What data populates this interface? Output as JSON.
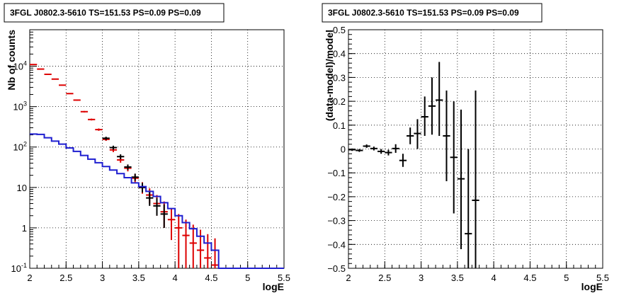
{
  "chart_data": [
    {
      "type": "scatter",
      "title": "3FGL J0802.3-5610 TS=151.53 PS=0.09 PS=0.09",
      "xlabel": "logE",
      "ylabel": "Nb of counts",
      "xlim": [
        2,
        5.5
      ],
      "ylim": [
        0.1,
        80000
      ],
      "yscale": "log",
      "grid": true,
      "x_ticks": [
        "2",
        "2.5",
        "3",
        "3.5",
        "4",
        "4.5",
        "5",
        "5.5"
      ],
      "y_ticks": [
        {
          "value": 0.1,
          "label": "10^-1"
        },
        {
          "value": 1,
          "label": "1"
        },
        {
          "value": 10,
          "label": "10"
        },
        {
          "value": 100,
          "label": "10^2"
        },
        {
          "value": 1000,
          "label": "10^3"
        },
        {
          "value": 10000,
          "label": "10^4"
        }
      ],
      "series": [
        {
          "color": "#dd0000",
          "style": "errorbar",
          "points": [
            {
              "x": 2.05,
              "y": 11000,
              "lo": 10800,
              "hi": 11200
            },
            {
              "x": 2.15,
              "y": 8500,
              "lo": 8350,
              "hi": 8650
            },
            {
              "x": 2.25,
              "y": 6300,
              "lo": 6180,
              "hi": 6420
            },
            {
              "x": 2.35,
              "y": 4800,
              "lo": 4700,
              "hi": 4900
            },
            {
              "x": 2.45,
              "y": 3400,
              "lo": 3320,
              "hi": 3480
            },
            {
              "x": 2.55,
              "y": 2100,
              "lo": 2050,
              "hi": 2150
            },
            {
              "x": 2.65,
              "y": 1450,
              "lo": 1400,
              "hi": 1500
            },
            {
              "x": 2.75,
              "y": 750,
              "lo": 720,
              "hi": 780
            },
            {
              "x": 2.85,
              "y": 480,
              "lo": 455,
              "hi": 505
            },
            {
              "x": 2.95,
              "y": 270,
              "lo": 252,
              "hi": 288
            },
            {
              "x": 3.05,
              "y": 155,
              "lo": 142,
              "hi": 168
            },
            {
              "x": 3.15,
              "y": 85,
              "lo": 75,
              "hi": 95
            },
            {
              "x": 3.25,
              "y": 48,
              "lo": 41,
              "hi": 55
            },
            {
              "x": 3.35,
              "y": 30,
              "lo": 25,
              "hi": 35
            },
            {
              "x": 3.45,
              "y": 17,
              "lo": 13.5,
              "hi": 21
            },
            {
              "x": 3.55,
              "y": 10,
              "lo": 7,
              "hi": 13.5
            },
            {
              "x": 3.65,
              "y": 6.5,
              "lo": 4,
              "hi": 9.5
            },
            {
              "x": 3.75,
              "y": 4,
              "lo": 2,
              "hi": 6.5
            },
            {
              "x": 3.85,
              "y": 2.5,
              "lo": 1,
              "hi": 4.5
            },
            {
              "x": 3.95,
              "y": 1.6,
              "lo": 0.5,
              "hi": 3
            },
            {
              "x": 4.05,
              "y": 1.0,
              "lo": 0.1,
              "hi": 2.2
            },
            {
              "x": 4.15,
              "y": 0.65,
              "lo": 0.1,
              "hi": 1.6
            },
            {
              "x": 4.25,
              "y": 0.42,
              "lo": 0.1,
              "hi": 1.2
            },
            {
              "x": 4.35,
              "y": 0.28,
              "lo": 0.1,
              "hi": 0.9
            },
            {
              "x": 4.45,
              "y": 0.18,
              "lo": 0.1,
              "hi": 0.7
            },
            {
              "x": 4.55,
              "y": 0.12,
              "lo": 0.1,
              "hi": 0.55
            }
          ]
        },
        {
          "color": "#000000",
          "style": "errorbar",
          "points": [
            {
              "x": 3.05,
              "y": 165,
              "lo": 150,
              "hi": 180
            },
            {
              "x": 3.15,
              "y": 97,
              "lo": 86,
              "hi": 108
            },
            {
              "x": 3.25,
              "y": 58,
              "lo": 50,
              "hi": 66
            },
            {
              "x": 3.35,
              "y": 32,
              "lo": 27,
              "hi": 37
            },
            {
              "x": 3.45,
              "y": 18,
              "lo": 14.5,
              "hi": 22
            },
            {
              "x": 3.55,
              "y": 10,
              "lo": 7.5,
              "hi": 13
            },
            {
              "x": 3.65,
              "y": 5.5,
              "lo": 3.5,
              "hi": 8
            },
            {
              "x": 3.75,
              "y": 3.5,
              "lo": 2,
              "hi": 5.5
            },
            {
              "x": 3.85,
              "y": 2.2,
              "lo": 1,
              "hi": 3.8
            }
          ]
        },
        {
          "color": "#1f1fd0",
          "style": "histogram",
          "bin_width": 0.1,
          "x": [
            2.0,
            2.1,
            2.2,
            2.3,
            2.4,
            2.5,
            2.6,
            2.7,
            2.8,
            2.9,
            3.0,
            3.1,
            3.2,
            3.3,
            3.4,
            3.5,
            3.6,
            3.7,
            3.8,
            3.9,
            4.0,
            4.1,
            4.2,
            4.3,
            4.4,
            4.5,
            4.6,
            4.7,
            4.8,
            4.9,
            5.0,
            5.1,
            5.2,
            5.3,
            5.4
          ],
          "y": [
            210,
            205,
            170,
            140,
            118,
            95,
            78,
            62,
            50,
            41,
            33,
            27,
            22,
            17.5,
            13,
            10.5,
            8,
            6,
            4.2,
            3,
            2,
            1.35,
            0.95,
            0.62,
            0.42,
            0.28,
            0.1,
            0.1,
            0.1,
            0.1,
            0.1,
            0.1,
            0.1,
            0.1,
            0.1
          ]
        }
      ]
    },
    {
      "type": "scatter",
      "title": "3FGL J0802.3-5610 TS=151.53 PS=0.09 PS=0.09",
      "xlabel": "logE",
      "ylabel": "(data-model)/model",
      "xlim": [
        2,
        5.5
      ],
      "ylim": [
        -0.5,
        0.5
      ],
      "grid": true,
      "x_ticks": [
        "2",
        "2.5",
        "3",
        "3.5",
        "4",
        "4.5",
        "5",
        "5.5"
      ],
      "y_ticks": [
        "-0.5",
        "-0.4",
        "-0.3",
        "-0.2",
        "-0.1",
        "0",
        "0.1",
        "0.2",
        "0.3",
        "0.4",
        "0.5"
      ],
      "series": [
        {
          "color": "#000000",
          "style": "errorbar",
          "points": [
            {
              "x": 2.05,
              "y": -0.003,
              "lo": -0.008,
              "hi": 0.002
            },
            {
              "x": 2.15,
              "y": -0.006,
              "lo": -0.012,
              "hi": 0.0
            },
            {
              "x": 2.25,
              "y": 0.012,
              "lo": 0.005,
              "hi": 0.019
            },
            {
              "x": 2.35,
              "y": 0.002,
              "lo": -0.006,
              "hi": 0.01
            },
            {
              "x": 2.45,
              "y": -0.01,
              "lo": -0.02,
              "hi": 0.0
            },
            {
              "x": 2.55,
              "y": -0.015,
              "lo": -0.027,
              "hi": -0.003
            },
            {
              "x": 2.65,
              "y": 0.002,
              "lo": -0.016,
              "hi": 0.02
            },
            {
              "x": 2.75,
              "y": -0.048,
              "lo": -0.075,
              "hi": -0.02
            },
            {
              "x": 2.85,
              "y": 0.055,
              "lo": 0.02,
              "hi": 0.09
            },
            {
              "x": 2.95,
              "y": 0.065,
              "lo": 0.0,
              "hi": 0.125
            },
            {
              "x": 3.05,
              "y": 0.135,
              "lo": 0.055,
              "hi": 0.22
            },
            {
              "x": 3.15,
              "y": 0.18,
              "lo": 0.06,
              "hi": 0.3
            },
            {
              "x": 3.25,
              "y": 0.205,
              "lo": 0.055,
              "hi": 0.365
            },
            {
              "x": 3.35,
              "y": 0.055,
              "lo": -0.135,
              "hi": 0.245
            },
            {
              "x": 3.45,
              "y": -0.035,
              "lo": -0.27,
              "hi": 0.2
            },
            {
              "x": 3.55,
              "y": -0.125,
              "lo": -0.42,
              "hi": 0.165
            },
            {
              "x": 3.65,
              "y": -0.355,
              "lo": -0.5,
              "hi": 0.0
            },
            {
              "x": 3.75,
              "y": -0.215,
              "lo": -0.5,
              "hi": 0.245
            }
          ]
        }
      ]
    }
  ]
}
